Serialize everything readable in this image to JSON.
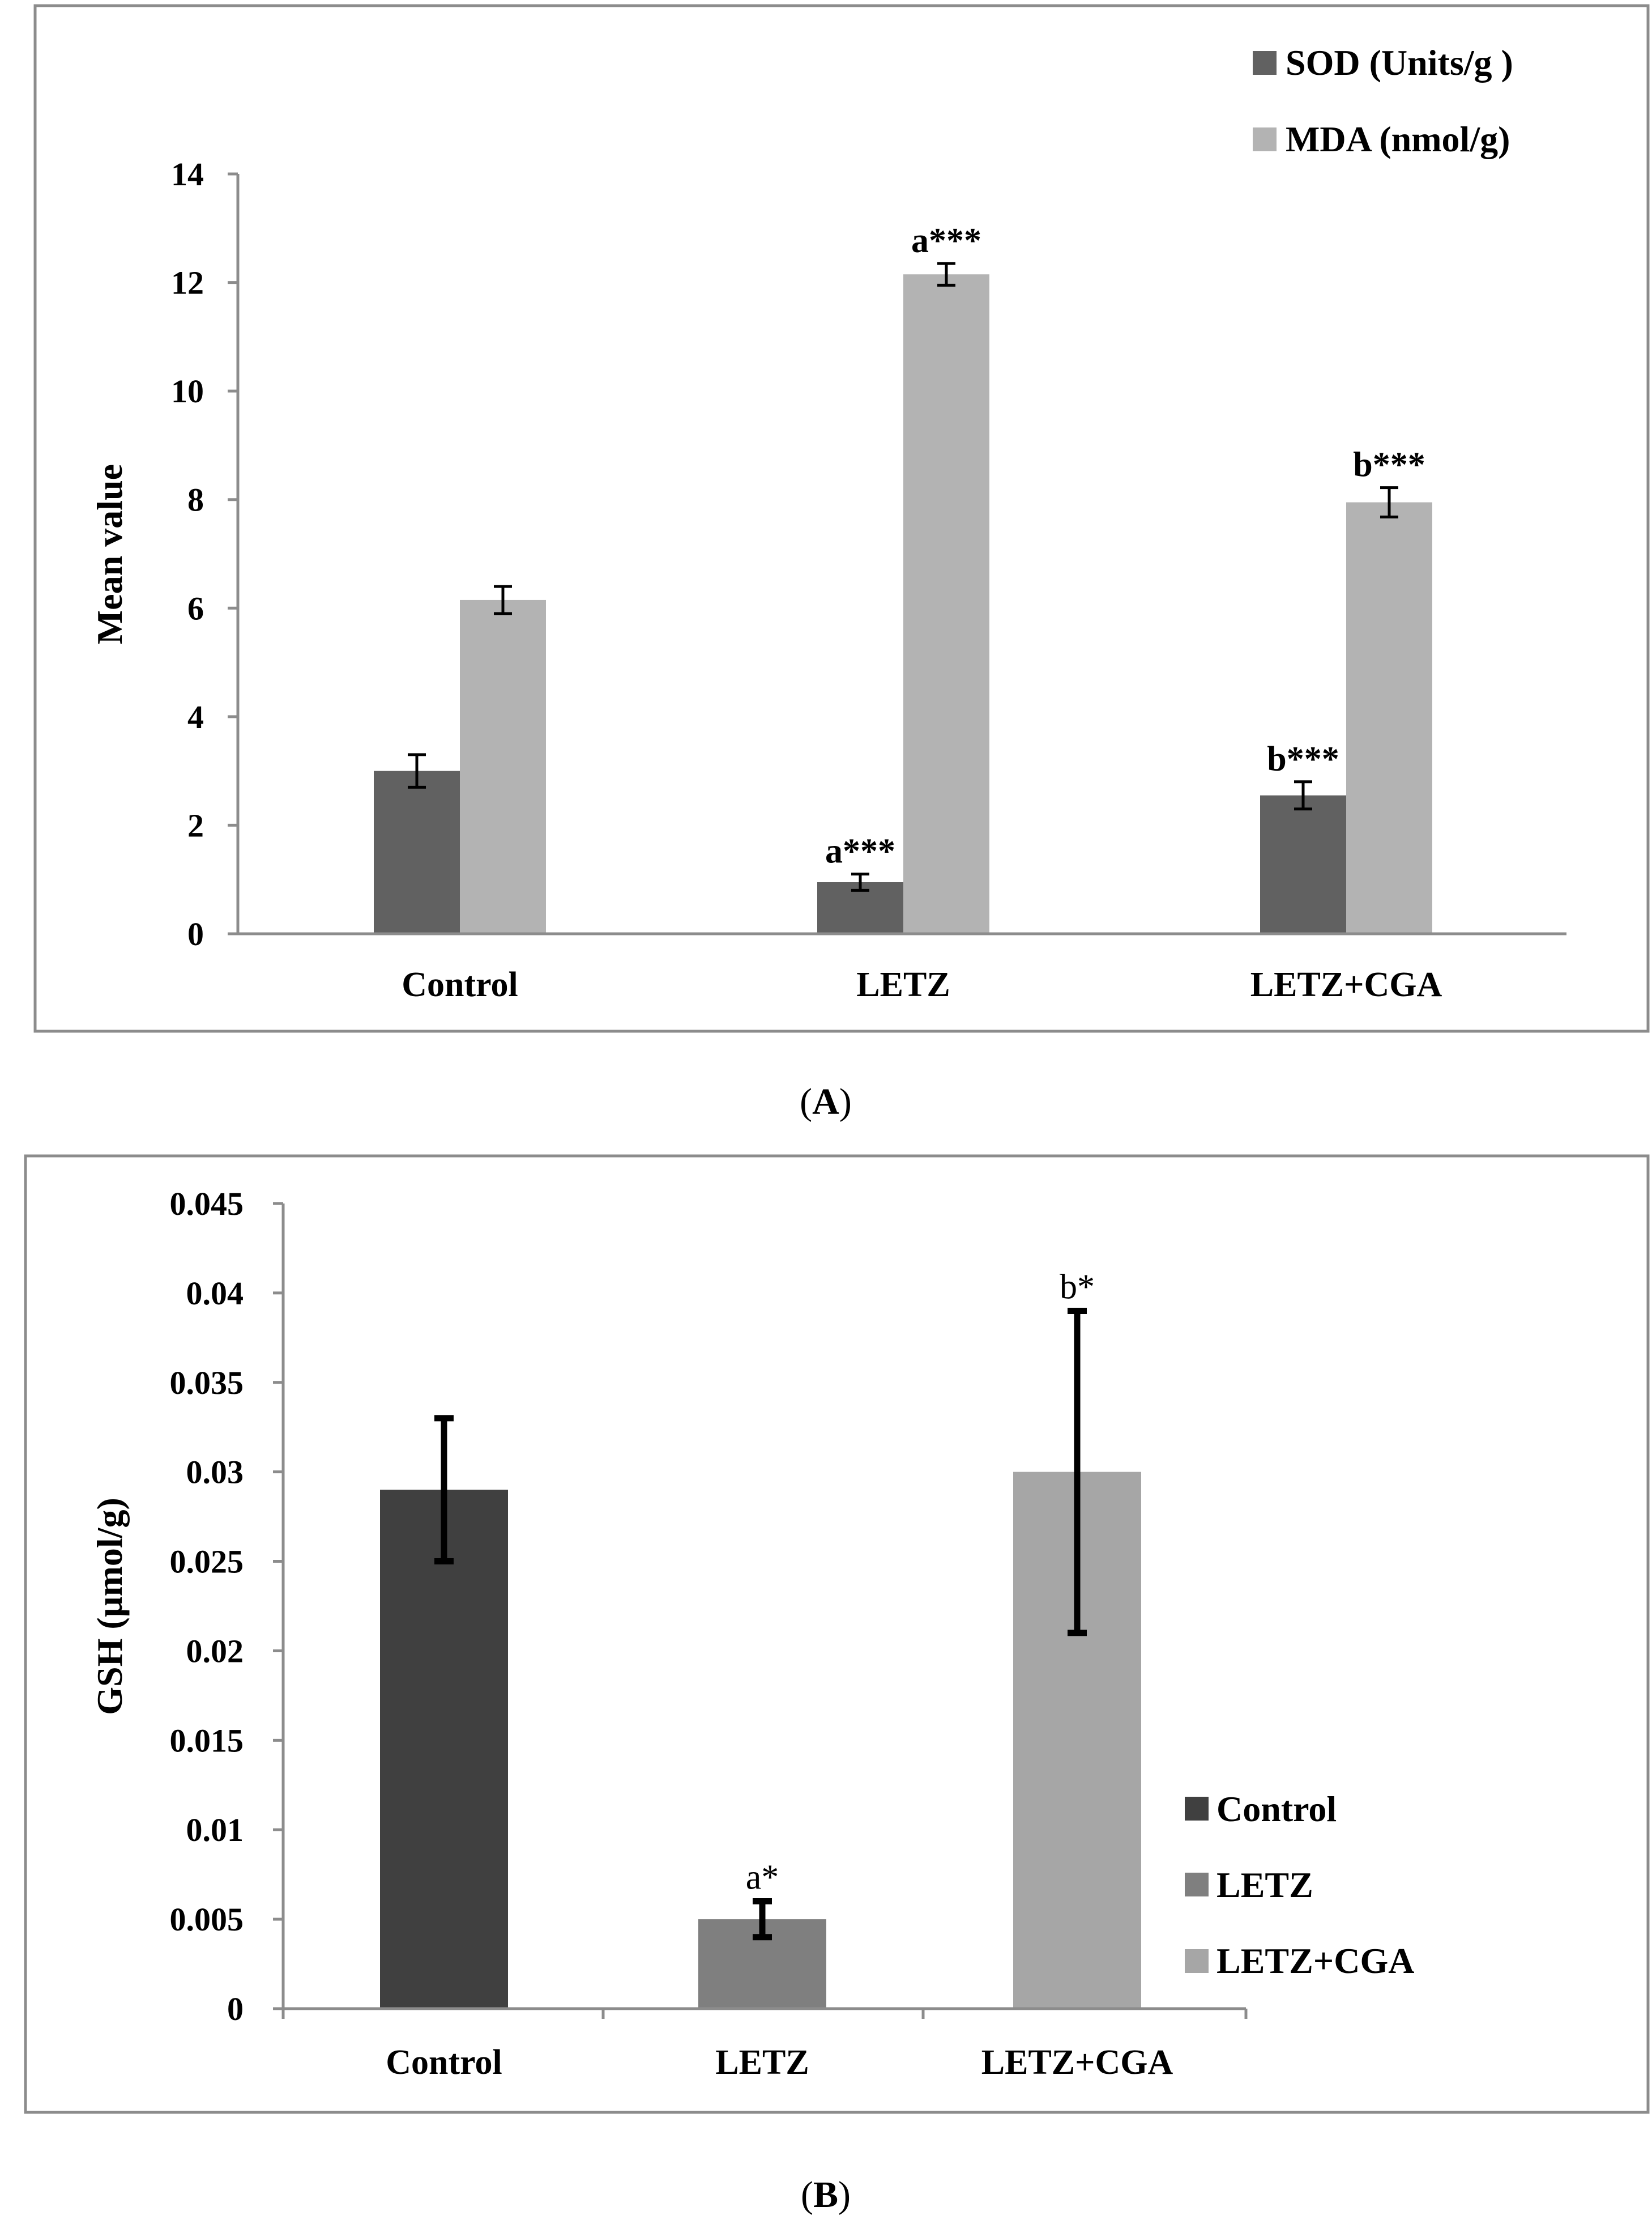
{
  "figure_labels": {
    "a_open": "(",
    "a_letter": "A",
    "a_close": ")",
    "b_open": "(",
    "b_letter": "B",
    "b_close": ")"
  },
  "colors": {
    "sod": "#616161",
    "mda": "#b3b3b3",
    "control": "#404040",
    "letz": "#7f7f7f",
    "letz_cga": "#a6a6a6",
    "error": "#000000",
    "axis": "#8c8c8c",
    "frame": "#8c8c8c"
  },
  "chart_data": [
    {
      "type": "bar",
      "panel": "A",
      "categories": [
        "Control",
        "LETZ",
        "LETZ+CGA"
      ],
      "series": [
        {
          "name": "SOD (Units/g )",
          "values": [
            3.0,
            0.95,
            2.55
          ],
          "errors": [
            0.3,
            0.15,
            0.25
          ],
          "annotations": [
            "",
            "a***",
            "b***"
          ]
        },
        {
          "name": "MDA (nmol/g)",
          "values": [
            6.15,
            12.15,
            7.95
          ],
          "errors": [
            0.25,
            0.2,
            0.27
          ],
          "annotations": [
            "",
            "a***",
            "b***"
          ]
        }
      ],
      "ylabel": "Mean value",
      "ylim": [
        0,
        14
      ],
      "yticks": [
        "0",
        "2",
        "4",
        "6",
        "8",
        "10",
        "12",
        "14"
      ],
      "legend_position": "top-right"
    },
    {
      "type": "bar",
      "panel": "B",
      "categories": [
        "Control",
        "LETZ",
        "LETZ+CGA"
      ],
      "values": [
        0.029,
        0.005,
        0.03
      ],
      "error_low": [
        0.025,
        0.004,
        0.021
      ],
      "error_high": [
        0.033,
        0.006,
        0.039
      ],
      "annotations": [
        "",
        "a*",
        "b*"
      ],
      "legend": [
        "Control",
        "LETZ",
        "LETZ+CGA"
      ],
      "ylabel": "GSH (µmol/g)",
      "ylim": [
        0,
        0.045
      ],
      "yticks": [
        "0",
        "0.005",
        "0.01",
        "0.015",
        "0.02",
        "0.025",
        "0.03",
        "0.035",
        "0.04",
        "0.045"
      ],
      "legend_position": "right"
    }
  ]
}
